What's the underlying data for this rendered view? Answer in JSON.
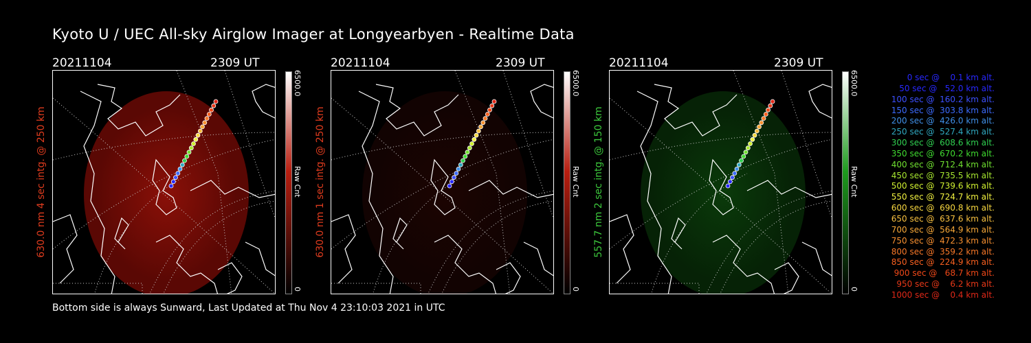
{
  "title": "Kyoto U / UEC All-sky Airglow Imager at Longyearbyen - Realtime Data",
  "footer": "Bottom side is always Sunward, Last Updated at Thu Nov  4 23:10:03 2021 in UTC",
  "panels": [
    {
      "date": "20211104",
      "time": "2309 UT",
      "ylabel": "630.0 nm 4 sec intg. @ 250 km",
      "label_color": "#e03c1e",
      "cb_max": "6500.0",
      "cb_min": "0",
      "cb_unit": "Raw Cnt",
      "cb_color": "#b81e10",
      "glow": "red-bright"
    },
    {
      "date": "20211104",
      "time": "2309 UT",
      "ylabel": "630.0 nm 1 sec intg. @ 250 km",
      "label_color": "#e03c1e",
      "cb_max": "6500.0",
      "cb_min": "0",
      "cb_unit": "Raw Cnt",
      "cb_color": "#b81e10",
      "glow": "red-dim"
    },
    {
      "date": "20211104",
      "time": "2309 UT",
      "ylabel": "557.7 nm 2 sec intg. @ 150 km",
      "label_color": "#3cc83c",
      "cb_max": "6500.0",
      "cb_min": "0",
      "cb_unit": "Raw Cnt",
      "cb_color": "#1e9a1e",
      "glow": "green"
    }
  ],
  "legend": [
    {
      "text": "0 sec @    0.1 km alt.",
      "color": "#2828ff"
    },
    {
      "text": "50 sec @   52.0 km alt.",
      "color": "#2828ff"
    },
    {
      "text": "100 sec @  160.2 km alt.",
      "color": "#3c50ff"
    },
    {
      "text": "150 sec @  303.8 km alt.",
      "color": "#3c6cff"
    },
    {
      "text": "200 sec @  426.0 km alt.",
      "color": "#4090e8"
    },
    {
      "text": "250 sec @  527.4 km alt.",
      "color": "#30a8c0"
    },
    {
      "text": "300 sec @  608.6 km alt.",
      "color": "#30d050"
    },
    {
      "text": "350 sec @  670.2 km alt.",
      "color": "#40dc30"
    },
    {
      "text": "400 sec @  712.4 km alt.",
      "color": "#70e030"
    },
    {
      "text": "450 sec @  735.5 km alt.",
      "color": "#a8e830"
    },
    {
      "text": "500 sec @  739.6 km alt.",
      "color": "#d0f030"
    },
    {
      "text": "550 sec @  724.7 km alt.",
      "color": "#f0f040"
    },
    {
      "text": "600 sec @  690.8 km alt.",
      "color": "#f8d840"
    },
    {
      "text": "650 sec @  637.6 km alt.",
      "color": "#f8c040"
    },
    {
      "text": "700 sec @  564.9 km alt.",
      "color": "#f8a838"
    },
    {
      "text": "750 sec @  472.3 km alt.",
      "color": "#f89030"
    },
    {
      "text": "800 sec @  359.2 km alt.",
      "color": "#f87828"
    },
    {
      "text": "850 sec @  224.9 km alt.",
      "color": "#f86020"
    },
    {
      "text": "900 sec @   68.7 km alt.",
      "color": "#f04818"
    },
    {
      "text": "950 sec @    6.2 km alt.",
      "color": "#e83818"
    },
    {
      "text": "1000 sec @    0.4 km alt.",
      "color": "#e02818"
    }
  ]
}
